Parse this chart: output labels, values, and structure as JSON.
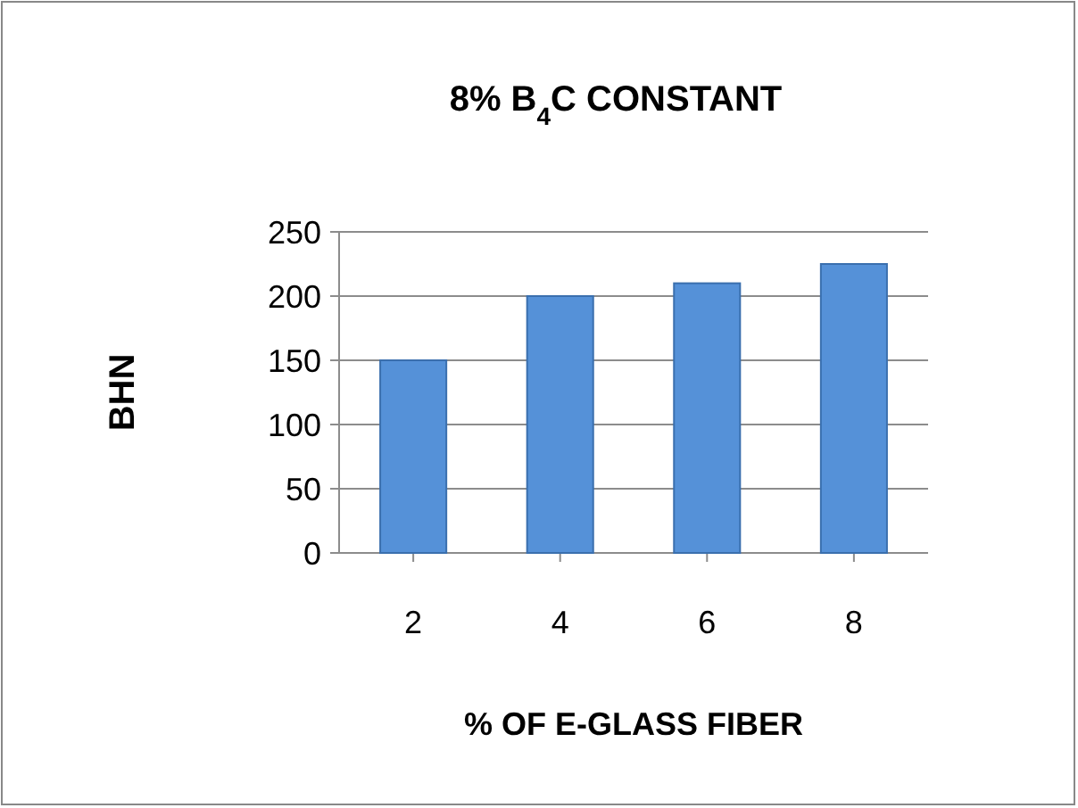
{
  "chart_data": {
    "type": "bar",
    "title": "8% B$_{4}$C CONSTANT",
    "xlabel": "% OF E-GLASS FIBER",
    "ylabel": "BHN",
    "categories": [
      "2",
      "4",
      "6",
      "8"
    ],
    "values": [
      150,
      200,
      210,
      225
    ],
    "color": "#5591d8",
    "ylim": [
      0,
      250
    ],
    "yticks": [
      0,
      50,
      100,
      150,
      200,
      250
    ],
    "grid": "y"
  }
}
